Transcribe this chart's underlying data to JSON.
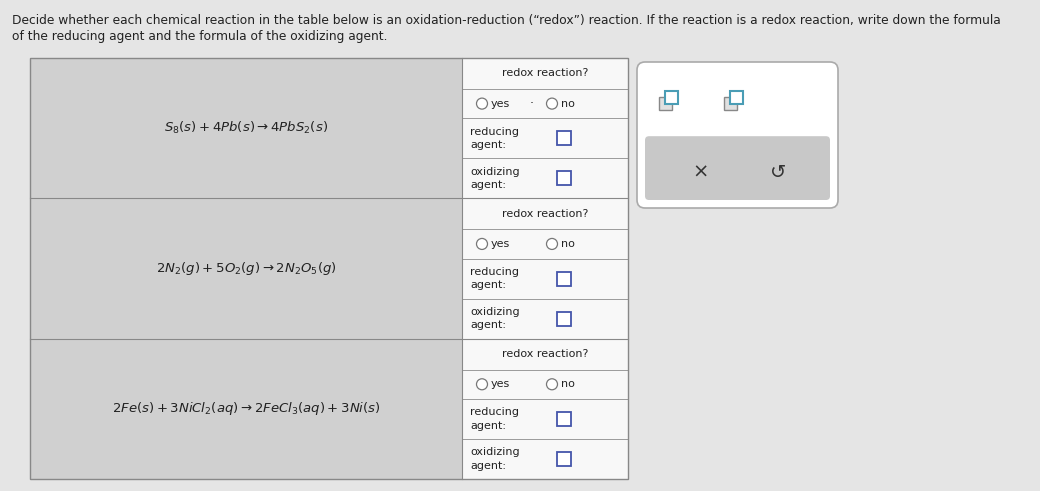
{
  "bg_color": "#e5e5e5",
  "table_bg": "#d0d0d0",
  "right_col_bg": "#f8f8f8",
  "white": "#ffffff",
  "border_color": "#888888",
  "text_color": "#222222",
  "teal_color": "#4a9db5",
  "blue_color": "#4455aa",
  "gray_btn": "#c8c8c8",
  "header1": "Decide whether each chemical reaction in the table below is an oxidation-reduction (“redox”) reaction. If the reaction is a redox reaction, write down the formula",
  "header2": "of the reducing agent and the formula of the oxidizing agent.",
  "reactions": [
    [
      "$S_8(s) + 4Pb(s) \\rightarrow 4PbS_2(s)$"
    ],
    [
      "$2N_2(g) + 5O_2(g) \\rightarrow 2N_2O_5(g)$"
    ],
    [
      "$2Fe(s) + 3NiCl_2(aq) \\rightarrow 2FeCl_3(aq) + 3Ni(s)$"
    ]
  ],
  "figw": 10.4,
  "figh": 4.91,
  "dpi": 100
}
